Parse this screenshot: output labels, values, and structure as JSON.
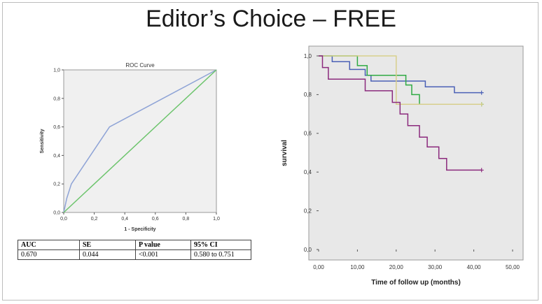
{
  "slide": {
    "title": "Editor’s Choice – FREE"
  },
  "chart_data": [
    {
      "type": "line",
      "title": "ROC Curve",
      "xlabel": "1 - Specificity",
      "ylabel": "Sensitivity",
      "xlim": [
        0,
        1
      ],
      "ylim": [
        0,
        1
      ],
      "xticks": [
        "0,0",
        "0,2",
        "0,4",
        "0,6",
        "0,8",
        "1,0"
      ],
      "yticks": [
        "0,0",
        "0,2",
        "0,4",
        "0,6",
        "0,8",
        "1,0"
      ],
      "grid": false,
      "series": [
        {
          "color": "#8ea3d6",
          "points": [
            [
              0,
              0
            ],
            [
              0.02,
              0.1
            ],
            [
              0.05,
              0.2
            ],
            [
              0.3,
              0.6
            ],
            [
              1,
              1
            ]
          ]
        },
        {
          "color": "#6cc46c",
          "points": [
            [
              0,
              0
            ],
            [
              1,
              1
            ]
          ]
        }
      ]
    },
    {
      "type": "line",
      "title": "",
      "xlabel": "Time of follow up (months)",
      "ylabel": "survival",
      "xlim": [
        0,
        50
      ],
      "ylim": [
        0,
        1
      ],
      "xticks": [
        "0,00",
        "10,00",
        "20,00",
        "30,00",
        "40,00",
        "50,00"
      ],
      "yticks": [
        "0,0",
        "0,2",
        "0,4",
        "0,6",
        "0,8",
        "1,0"
      ],
      "grid": false,
      "series": [
        {
          "color": "#4b61b6",
          "points": [
            [
              0,
              1
            ],
            [
              3.5,
              1
            ],
            [
              3.5,
              0.97
            ],
            [
              8,
              0.97
            ],
            [
              8,
              0.93
            ],
            [
              12,
              0.93
            ],
            [
              12,
              0.9
            ],
            [
              13.5,
              0.9
            ],
            [
              13.5,
              0.87
            ],
            [
              27.5,
              0.87
            ],
            [
              27.5,
              0.84
            ],
            [
              35,
              0.84
            ],
            [
              35,
              0.81
            ],
            [
              42,
              0.81
            ]
          ],
          "censor": [
            [
              42,
              0.81
            ]
          ]
        },
        {
          "color": "#2faa43",
          "points": [
            [
              0,
              1
            ],
            [
              10,
              1
            ],
            [
              10,
              0.95
            ],
            [
              12.5,
              0.95
            ],
            [
              12.5,
              0.9
            ],
            [
              22.5,
              0.9
            ],
            [
              22.5,
              0.85
            ],
            [
              24,
              0.85
            ],
            [
              24,
              0.8
            ],
            [
              26,
              0.8
            ],
            [
              26,
              0.75
            ],
            [
              42,
              0.75
            ]
          ],
          "censor": [
            [
              42,
              0.75
            ]
          ]
        },
        {
          "color": "#d8cf8c",
          "points": [
            [
              0,
              1
            ],
            [
              20,
              1
            ],
            [
              20,
              0.75
            ],
            [
              42,
              0.75
            ]
          ],
          "censor": [
            [
              42,
              0.75
            ]
          ]
        },
        {
          "color": "#8b2a7d",
          "points": [
            [
              0,
              1
            ],
            [
              1,
              1
            ],
            [
              1,
              0.94
            ],
            [
              2.5,
              0.94
            ],
            [
              2.5,
              0.88
            ],
            [
              12,
              0.88
            ],
            [
              12,
              0.82
            ],
            [
              19,
              0.82
            ],
            [
              19,
              0.76
            ],
            [
              21,
              0.76
            ],
            [
              21,
              0.7
            ],
            [
              23,
              0.7
            ],
            [
              23,
              0.64
            ],
            [
              26,
              0.64
            ],
            [
              26,
              0.58
            ],
            [
              28,
              0.58
            ],
            [
              28,
              0.53
            ],
            [
              31,
              0.53
            ],
            [
              31,
              0.47
            ],
            [
              33,
              0.47
            ],
            [
              33,
              0.41
            ],
            [
              42,
              0.41
            ]
          ],
          "censor": [
            [
              42,
              0.41
            ]
          ]
        }
      ]
    }
  ],
  "stats_table": {
    "headers": [
      "AUC",
      "SE",
      "P value",
      "95% CI"
    ],
    "row": [
      "0.670",
      "0.044",
      "<0.001",
      "0.580 to 0.751"
    ]
  }
}
